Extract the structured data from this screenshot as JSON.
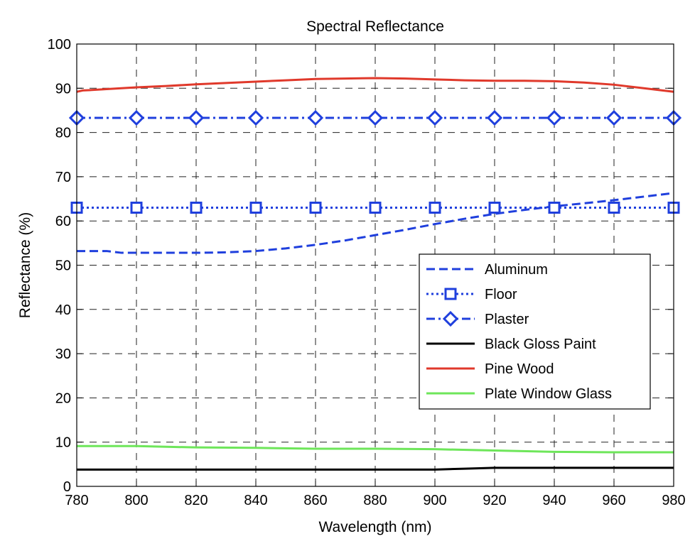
{
  "chart_data": {
    "type": "line",
    "title": "Spectral Reflectance",
    "xlabel": "Wavelength (nm)",
    "ylabel": "Reflectance (%)",
    "xlim": [
      780,
      980
    ],
    "ylim": [
      0,
      100
    ],
    "xticks": [
      780,
      800,
      820,
      840,
      860,
      880,
      900,
      920,
      940,
      960,
      980
    ],
    "yticks": [
      0,
      10,
      20,
      30,
      40,
      50,
      60,
      70,
      80,
      90,
      100
    ],
    "grid": true,
    "legend_position": "right",
    "series": [
      {
        "name": "Aluminum",
        "color": "#1f3fdd",
        "dash": "dashed",
        "marker": "none",
        "x": [
          780,
          785,
          790,
          795,
          800,
          810,
          820,
          830,
          840,
          850,
          860,
          870,
          880,
          890,
          900,
          910,
          920,
          930,
          940,
          950,
          960,
          970,
          980
        ],
        "y": [
          53.2,
          53.2,
          53.2,
          52.8,
          52.8,
          52.8,
          52.8,
          52.9,
          53.2,
          53.8,
          54.6,
          55.6,
          56.8,
          58.0,
          59.3,
          60.5,
          61.6,
          62.5,
          63.3,
          64.0,
          64.7,
          65.5,
          66.3
        ]
      },
      {
        "name": "Floor",
        "color": "#1f3fdd",
        "dash": "dotted",
        "marker": "square",
        "x": [
          780,
          800,
          820,
          840,
          860,
          880,
          900,
          920,
          940,
          960,
          980
        ],
        "y": [
          63.0,
          63.0,
          63.0,
          63.0,
          63.0,
          63.0,
          63.0,
          63.0,
          63.0,
          63.0,
          63.0
        ]
      },
      {
        "name": "Plaster",
        "color": "#1f3fdd",
        "dash": "dashdot",
        "marker": "diamond",
        "x": [
          780,
          800,
          820,
          840,
          860,
          880,
          900,
          920,
          940,
          960,
          980
        ],
        "y": [
          83.3,
          83.3,
          83.3,
          83.3,
          83.3,
          83.3,
          83.3,
          83.3,
          83.3,
          83.3,
          83.3
        ]
      },
      {
        "name": "Black Gloss Paint",
        "color": "#000000",
        "dash": "solid",
        "marker": "none",
        "x": [
          780,
          800,
          820,
          840,
          860,
          880,
          900,
          910,
          920,
          940,
          960,
          980
        ],
        "y": [
          3.8,
          3.8,
          3.8,
          3.8,
          3.8,
          3.8,
          3.8,
          4.0,
          4.2,
          4.2,
          4.2,
          4.2
        ]
      },
      {
        "name": "Pine Wood",
        "color": "#e0392b",
        "dash": "solid",
        "marker": "none",
        "x": [
          780,
          782,
          785,
          790,
          795,
          800,
          810,
          820,
          830,
          840,
          850,
          860,
          870,
          880,
          890,
          900,
          910,
          920,
          930,
          940,
          950,
          960,
          970,
          980
        ],
        "y": [
          89.2,
          89.5,
          89.6,
          89.8,
          90.0,
          90.2,
          90.5,
          90.9,
          91.2,
          91.5,
          91.8,
          92.1,
          92.2,
          92.3,
          92.2,
          92.0,
          91.8,
          91.7,
          91.7,
          91.6,
          91.3,
          90.8,
          90.0,
          89.2
        ]
      },
      {
        "name": "Plate Window Glass",
        "color": "#6ee65a",
        "dash": "solid",
        "marker": "none",
        "x": [
          780,
          800,
          820,
          840,
          860,
          880,
          900,
          920,
          940,
          960,
          980
        ],
        "y": [
          9.1,
          9.1,
          8.8,
          8.7,
          8.5,
          8.5,
          8.4,
          8.1,
          7.8,
          7.7,
          7.7
        ]
      }
    ]
  }
}
